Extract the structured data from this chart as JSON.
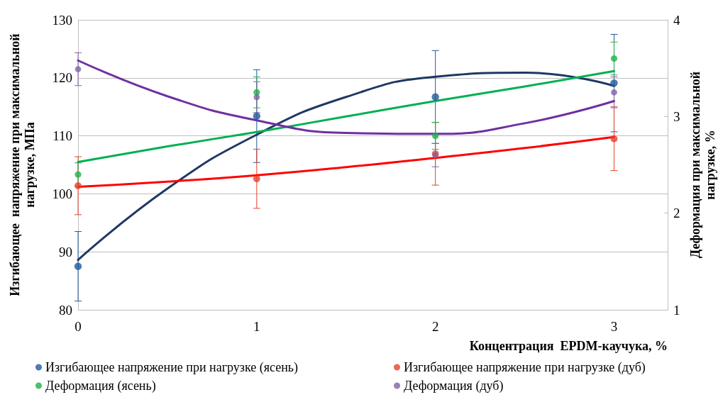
{
  "chart_data": {
    "type": "scatter",
    "xlabel": "Концентрация  EPDM-каучука, %",
    "ylabel": "Изгибающее  напряжение при максимальной нагрузке, МПа",
    "y2label": "Деформация при максимальной нагрузке, %",
    "xlim": [
      0,
      3.3
    ],
    "xticks": [
      0,
      1,
      2,
      3
    ],
    "ylim": [
      80,
      130
    ],
    "yticks": [
      80,
      90,
      100,
      110,
      120,
      130
    ],
    "y2lim": [
      1,
      4
    ],
    "y2ticks": [
      1,
      2,
      3,
      4
    ],
    "grid": "y",
    "legend": "bottom",
    "marker": "circle",
    "series": [
      {
        "name": "Изгибающее напряжение при нагрузке (ясень)",
        "color": "#1f5a9e",
        "x": [
          0,
          1,
          2,
          3
        ],
        "values": [
          87.5,
          113.4,
          116.7,
          119.1
        ],
        "errors": [
          6,
          8,
          8,
          8.4
        ]
      },
      {
        "name": "Изгибающее напряжение при нагрузке (дуб)",
        "color": "#e8402a",
        "x": [
          0,
          1,
          2,
          3
        ],
        "values": [
          101.4,
          102.6,
          106.9,
          109.5
        ],
        "errors": [
          5,
          5.1,
          5.4,
          5.5
        ]
      },
      {
        "name": "Деформация (ясень)",
        "color": "#22b04b",
        "axis": "y2",
        "x": [
          0,
          1,
          2,
          3
        ],
        "values": [
          2.4,
          3.25,
          2.8,
          3.6
        ],
        "errors": [
          0.12,
          0.16,
          0.14,
          0.17
        ]
      },
      {
        "name": "Деформация (дуб)",
        "color": "#8064a2",
        "axis": "y2",
        "x": [
          0,
          1,
          2,
          3
        ],
        "values": [
          3.49,
          3.2,
          2.6,
          3.25
        ],
        "errors": [
          0.17,
          0.16,
          0.12,
          0.16
        ]
      },
      {
        "type": "line",
        "color": "#1f3864",
        "marker": "none",
        "x": [
          0,
          0.5,
          1,
          1.5,
          2,
          2.5,
          3
        ],
        "values": [
          88.6,
          100.9,
          110.2,
          116.7,
          120.2,
          120.9,
          118.6
        ]
      },
      {
        "type": "line",
        "color": "#ff0000",
        "marker": "none",
        "x": [
          0,
          0.5,
          1,
          1.5,
          2,
          2.5,
          3
        ],
        "values": [
          101.2,
          102.1,
          103.2,
          104.6,
          106.2,
          107.9,
          109.8
        ]
      },
      {
        "type": "line",
        "color": "#00b050",
        "marker": "none",
        "axis": "y2",
        "x": [
          0,
          0.5,
          1,
          1.5,
          2,
          2.5,
          3
        ],
        "values": [
          2.53,
          2.69,
          2.84,
          3.0,
          3.16,
          3.31,
          3.47
        ]
      },
      {
        "type": "line",
        "color": "#7030a0",
        "marker": "none",
        "axis": "y2",
        "x": [
          0,
          0.5,
          1,
          1.5,
          2,
          2.5,
          3
        ],
        "values": [
          3.58,
          3.21,
          2.96,
          2.83,
          2.82,
          2.93,
          3.16
        ]
      }
    ]
  }
}
